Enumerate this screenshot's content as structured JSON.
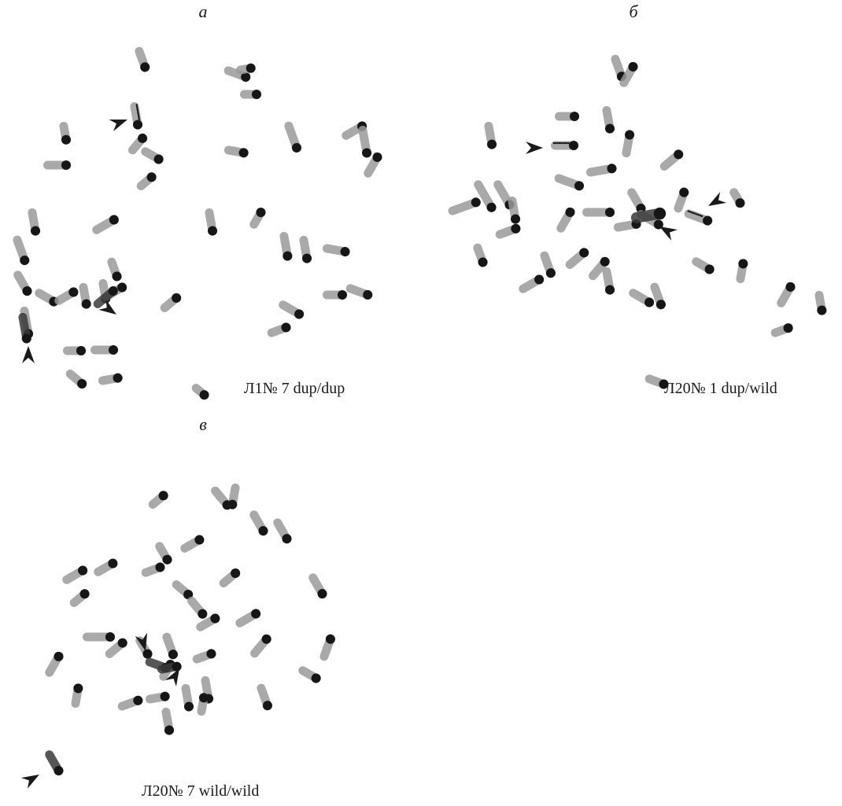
{
  "panels": [
    {
      "id": "a",
      "letter": "а",
      "caption": "Л1№ 7 dup/dup",
      "arrow_count": 3
    },
    {
      "id": "b",
      "letter": "б",
      "caption": "Л20№ 1 dup/wild",
      "arrow_count": 3
    },
    {
      "id": "c",
      "letter": "в",
      "caption": "Л20№ 7 wild/wild",
      "arrow_count": 3
    }
  ],
  "colors": {
    "chromosome_arm": "#9a9a9a",
    "centromere": "#161616",
    "arrowhead": "#1a1a1a",
    "background": "#ffffff"
  }
}
